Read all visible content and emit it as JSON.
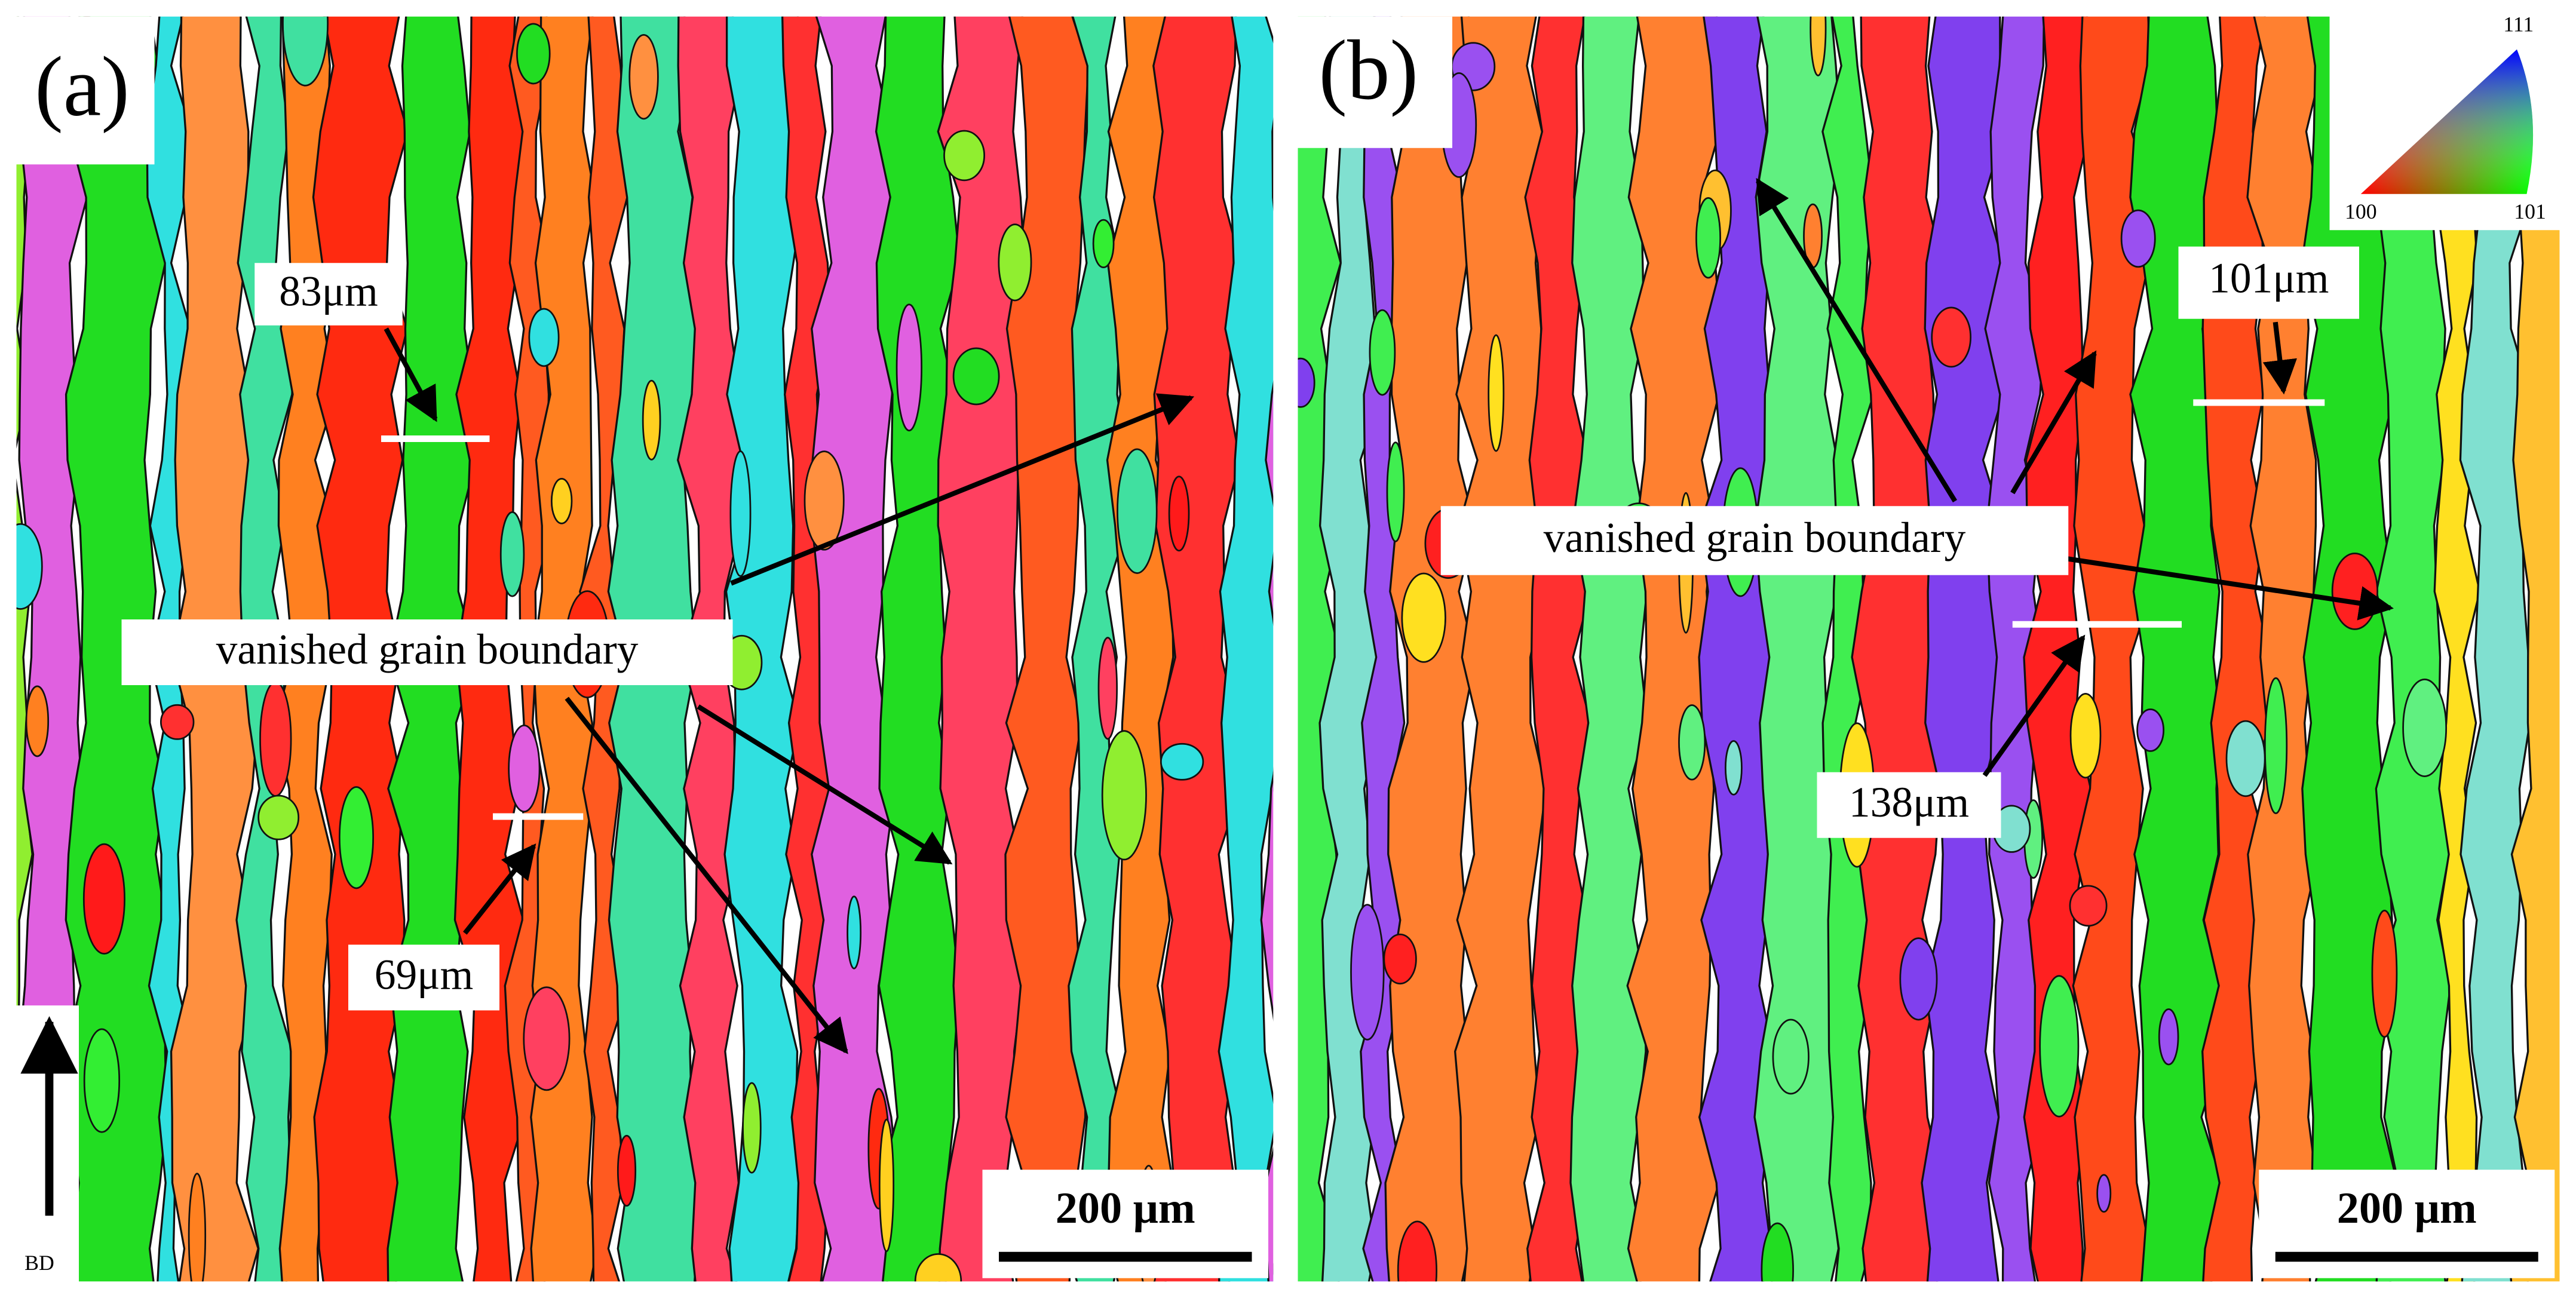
{
  "panels": [
    {
      "label": "(a)",
      "length_labels": [
        "83μm",
        "69μm"
      ],
      "annotation": "vanished grain boundary",
      "scale_bar": "200 μm"
    },
    {
      "label": "(b)",
      "length_labels": [
        "101μm",
        "138μm"
      ],
      "annotation": "vanished grain boundary",
      "scale_bar": "200 μm"
    }
  ],
  "direction": "BD",
  "ipf_legend": {
    "top": "111",
    "left": "100",
    "right": "101"
  }
}
